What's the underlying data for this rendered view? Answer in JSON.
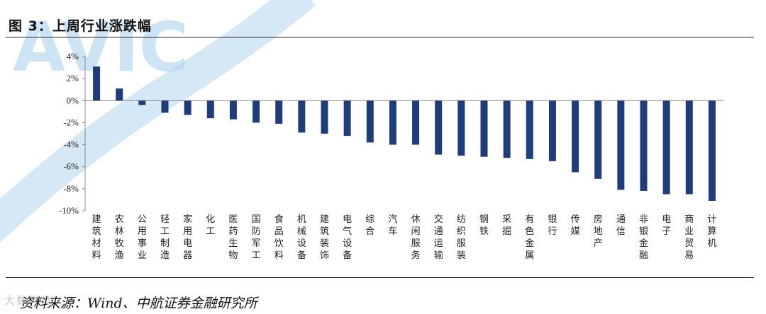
{
  "title": "图 3：上周行业涨跌幅",
  "source": "资料来源：Wind、中航证券金融研究所",
  "corner_mark": "大数跨境",
  "watermark_text": "AVIC",
  "colors": {
    "bar": "#1f3d7a",
    "watermark": "#b7d9ee",
    "axis": "#888888"
  },
  "chart_data": {
    "type": "bar",
    "title": "上周行业涨跌幅",
    "xlabel": "",
    "ylabel": "",
    "ylim": [
      -10,
      4
    ],
    "yticks": [
      "4%",
      "2%",
      "0%",
      "-2%",
      "-4%",
      "-6%",
      "-8%",
      "-10%"
    ],
    "ytick_values": [
      4,
      2,
      0,
      -2,
      -4,
      -6,
      -8,
      -10
    ],
    "grid": false,
    "categories": [
      "建筑材料",
      "农林牧渔",
      "公用事业",
      "轻工制造",
      "家用电器",
      "化工",
      "医药生物",
      "国防军工",
      "食品饮料",
      "机械设备",
      "建筑装饰",
      "电气设备",
      "综合",
      "汽车",
      "休闲服务",
      "交通运输",
      "纺织服装",
      "钢铁",
      "采掘",
      "有色金属",
      "银行",
      "传媒",
      "房地产",
      "通信",
      "非银金融",
      "电子",
      "商业贸易",
      "计算机"
    ],
    "values": [
      3.1,
      1.1,
      -0.4,
      -1.1,
      -1.3,
      -1.6,
      -1.7,
      -2.0,
      -2.1,
      -2.9,
      -3.0,
      -3.2,
      -3.8,
      -4.0,
      -4.0,
      -4.9,
      -5.0,
      -5.1,
      -5.2,
      -5.3,
      -5.5,
      -6.5,
      -7.1,
      -8.1,
      -8.2,
      -8.5,
      -8.5,
      -9.1
    ]
  }
}
